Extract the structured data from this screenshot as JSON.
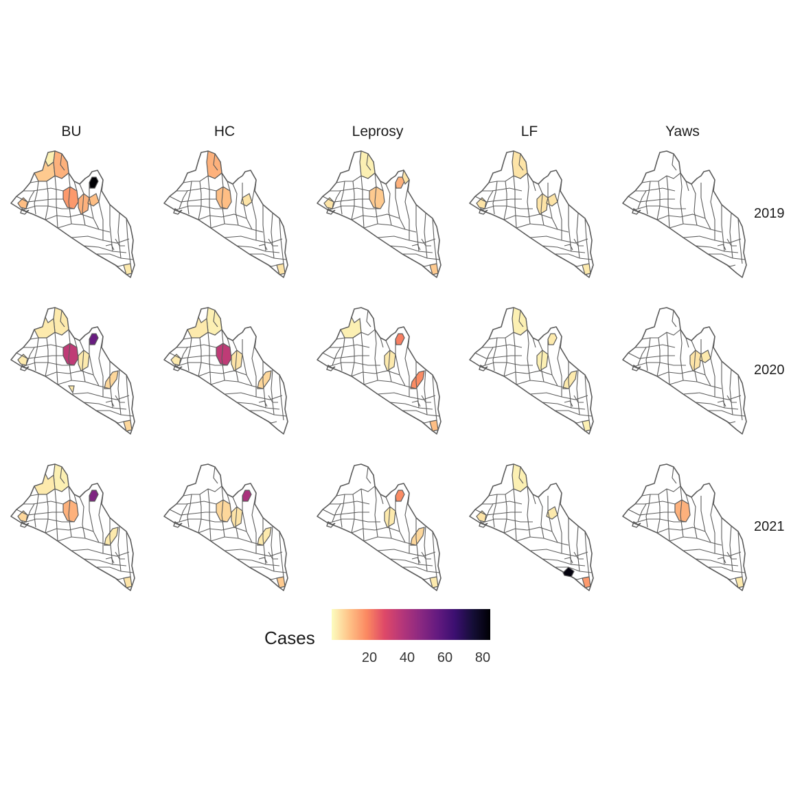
{
  "figure": {
    "columns": [
      "BU",
      "HC",
      "Leprosy",
      "LF",
      "Yaws"
    ],
    "rows": [
      "2019",
      "2020",
      "2021"
    ]
  },
  "legend": {
    "title": "Cases",
    "ticks": [
      "20",
      "40",
      "60",
      "80"
    ],
    "tick_values": [
      20,
      40,
      60,
      80
    ],
    "range": [
      0,
      84
    ],
    "colors": [
      "#fcfdbf",
      "#fec287",
      "#fb8861",
      "#de4968",
      "#b5367a",
      "#8c2981",
      "#641a80",
      "#3b0f70",
      "#150e37",
      "#000004"
    ]
  },
  "style": {
    "border_color": "#5a5a5a",
    "empty_fill": "#ffffff"
  },
  "chart_data": {
    "type": "choropleth-facets",
    "value_label": "Cases",
    "panels": [
      {
        "disease": "BU",
        "year": "2019",
        "highlights": [
          {
            "district": "far-north-top",
            "value": 2
          },
          {
            "district": "north-west-mid",
            "value": 8
          },
          {
            "district": "north-central",
            "value": 12
          },
          {
            "district": "far-north-east",
            "value": 84
          },
          {
            "district": "central-a",
            "value": 16
          },
          {
            "district": "central-b",
            "value": 12
          },
          {
            "district": "west-coast",
            "value": 10
          },
          {
            "district": "east-a",
            "value": 10
          },
          {
            "district": "far-south-east",
            "value": 3
          }
        ]
      },
      {
        "disease": "HC",
        "year": "2019",
        "highlights": [
          {
            "district": "north-central",
            "value": 12
          },
          {
            "district": "central-a",
            "value": 10
          },
          {
            "district": "east-a",
            "value": 4
          },
          {
            "district": "far-south-east",
            "value": 4
          }
        ]
      },
      {
        "disease": "Leprosy",
        "year": "2019",
        "highlights": [
          {
            "district": "north-central",
            "value": 2
          },
          {
            "district": "far-north-east",
            "value": 12
          },
          {
            "district": "east-b",
            "value": 4
          },
          {
            "district": "west-coast",
            "value": 4
          },
          {
            "district": "far-south-east",
            "value": 8
          },
          {
            "district": "central-a",
            "value": 8
          }
        ]
      },
      {
        "disease": "LF",
        "year": "2019",
        "highlights": [
          {
            "district": "north-central",
            "value": 4
          },
          {
            "district": "west-coast",
            "value": 4
          },
          {
            "district": "central-b",
            "value": 4
          },
          {
            "district": "east-a",
            "value": 4
          },
          {
            "district": "far-south-east",
            "value": 3
          }
        ]
      },
      {
        "disease": "Yaws",
        "year": "2019",
        "highlights": []
      },
      {
        "disease": "BU",
        "year": "2020",
        "highlights": [
          {
            "district": "north-central",
            "value": 3
          },
          {
            "district": "north-west-mid",
            "value": 3
          },
          {
            "district": "far-north-east",
            "value": 55
          },
          {
            "district": "central-a",
            "value": 35
          },
          {
            "district": "central-b",
            "value": 3
          },
          {
            "district": "south-mid",
            "value": 6
          },
          {
            "district": "west-coast",
            "value": 3
          },
          {
            "district": "far-south-east",
            "value": 6
          },
          {
            "district": "south-west",
            "value": 3
          }
        ]
      },
      {
        "disease": "HC",
        "year": "2020",
        "highlights": [
          {
            "district": "north-central",
            "value": 2
          },
          {
            "district": "central-a",
            "value": 35
          },
          {
            "district": "central-b",
            "value": 4
          },
          {
            "district": "south-mid",
            "value": 6
          },
          {
            "district": "west-coast",
            "value": 3
          },
          {
            "district": "north-west-mid",
            "value": 3
          }
        ]
      },
      {
        "disease": "Leprosy",
        "year": "2020",
        "highlights": [
          {
            "district": "far-north-east",
            "value": 20
          },
          {
            "district": "south-mid",
            "value": 18
          },
          {
            "district": "central-b",
            "value": 3
          },
          {
            "district": "far-south-east",
            "value": 10
          },
          {
            "district": "north-west-mid",
            "value": 2
          }
        ]
      },
      {
        "disease": "LF",
        "year": "2020",
        "highlights": [
          {
            "district": "north-central",
            "value": 2
          },
          {
            "district": "central-b",
            "value": 2
          },
          {
            "district": "south-mid",
            "value": 3
          },
          {
            "district": "far-south-east",
            "value": 2
          },
          {
            "district": "far-north-east",
            "value": 3
          }
        ]
      },
      {
        "disease": "Yaws",
        "year": "2020",
        "highlights": [
          {
            "district": "central-b",
            "value": 4
          },
          {
            "district": "east-a",
            "value": 3
          }
        ]
      },
      {
        "disease": "BU",
        "year": "2021",
        "highlights": [
          {
            "district": "north-central",
            "value": 2
          },
          {
            "district": "north-west-mid",
            "value": 3
          },
          {
            "district": "far-north-east",
            "value": 50
          },
          {
            "district": "central-a",
            "value": 12
          },
          {
            "district": "west-coast",
            "value": 6
          },
          {
            "district": "south-mid",
            "value": 3
          },
          {
            "district": "far-south-east",
            "value": 4
          }
        ]
      },
      {
        "disease": "HC",
        "year": "2021",
        "highlights": [
          {
            "district": "far-north-east",
            "value": 40
          },
          {
            "district": "central-a",
            "value": 6
          },
          {
            "district": "central-b",
            "value": 4
          },
          {
            "district": "south-mid",
            "value": 3
          },
          {
            "district": "far-south-east",
            "value": 8
          }
        ]
      },
      {
        "disease": "Leprosy",
        "year": "2021",
        "highlights": [
          {
            "district": "far-north-east",
            "value": 18
          },
          {
            "district": "central-b",
            "value": 3
          },
          {
            "district": "south-mid",
            "value": 6
          },
          {
            "district": "far-south-east",
            "value": 3
          }
        ]
      },
      {
        "disease": "LF",
        "year": "2021",
        "highlights": [
          {
            "district": "north-central",
            "value": 2
          },
          {
            "district": "west-coast",
            "value": 4
          },
          {
            "district": "south-east-coast",
            "value": 82
          },
          {
            "district": "far-south-east",
            "value": 16
          },
          {
            "district": "east-a",
            "value": 3
          }
        ]
      },
      {
        "disease": "Yaws",
        "year": "2021",
        "highlights": [
          {
            "district": "central-a",
            "value": 12
          },
          {
            "district": "far-south-east",
            "value": 3
          }
        ]
      }
    ]
  }
}
